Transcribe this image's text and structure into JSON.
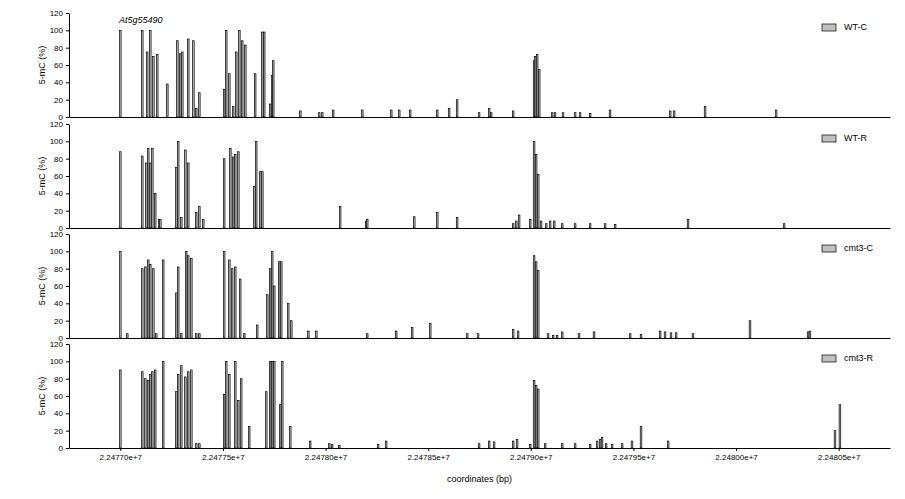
{
  "chart_data": [
    {
      "type": "bar",
      "annotation": "At5g55490",
      "ylabel": "5-mC (%)",
      "xlim": [
        22476750,
        22480750
      ],
      "ylim": [
        0,
        120
      ],
      "yticks": [
        0,
        20,
        40,
        60,
        80,
        100,
        120
      ],
      "legend": "upper right",
      "tick_labels": "y",
      "x": [
        22477000,
        22477107,
        22477131,
        22477146,
        22477161,
        22477180,
        22477229,
        22477278,
        22477292,
        22477302,
        22477331,
        22477356,
        22477370,
        22477385,
        22477506,
        22477516,
        22477531,
        22477550,
        22477565,
        22477580,
        22477594,
        22477609,
        22477657,
        22477692,
        22477701,
        22477730,
        22477740,
        22477745,
        22477877,
        22477969,
        22477984,
        22478037,
        22478179,
        22478320,
        22478359,
        22478412,
        22478544,
        22478602,
        22478641,
        22478748,
        22478797,
        22478807,
        22478914,
        22479016,
        22479021,
        22479031,
        22479041,
        22479104,
        22479118,
        22479157,
        22479216,
        22479240,
        22479289,
        22479386,
        22479679,
        22479698,
        22479849,
        22480195
      ],
      "series": [
        {
          "name": "WT-C",
          "color": "#c0c0c0",
          "values": [
            100,
            100,
            75,
            100,
            70,
            72,
            38,
            88,
            73,
            75,
            90,
            88,
            10,
            28,
            32,
            100,
            50,
            12,
            75,
            100,
            88,
            83,
            50,
            98,
            98,
            15,
            48,
            65,
            7,
            5,
            5,
            8,
            8,
            8,
            8,
            8,
            8,
            10,
            20,
            5,
            10,
            5,
            7,
            65,
            70,
            72,
            55,
            5,
            5,
            5,
            5,
            5,
            4,
            8,
            7,
            7,
            12,
            8
          ]
        }
      ]
    },
    {
      "type": "bar",
      "ylabel": "5-mC (%)",
      "xlim": [
        22476750,
        22480750
      ],
      "ylim": [
        0,
        120
      ],
      "yticks": [
        0,
        20,
        40,
        60,
        80,
        100,
        120
      ],
      "legend": "upper right",
      "tick_labels": "y",
      "x": [
        22477000,
        22477107,
        22477127,
        22477136,
        22477146,
        22477156,
        22477170,
        22477190,
        22477195,
        22477273,
        22477282,
        22477297,
        22477317,
        22477331,
        22477370,
        22477385,
        22477404,
        22477506,
        22477536,
        22477550,
        22477560,
        22477575,
        22477653,
        22477662,
        22477682,
        22477692,
        22478071,
        22478198,
        22478203,
        22478432,
        22478544,
        22478641,
        22478914,
        22478929,
        22478943,
        22478997,
        22479016,
        22479026,
        22479036,
        22479050,
        22479075,
        22479094,
        22479114,
        22479153,
        22479216,
        22479289,
        22479362,
        22479411,
        22479766,
        22480234
      ],
      "series": [
        {
          "name": "WT-R",
          "color": "#c0c0c0",
          "values": [
            88,
            83,
            75,
            92,
            75,
            92,
            40,
            10,
            10,
            70,
            100,
            12,
            90,
            75,
            18,
            25,
            10,
            80,
            92,
            82,
            85,
            88,
            48,
            100,
            65,
            65,
            25,
            8,
            10,
            13,
            18,
            12,
            5,
            8,
            15,
            10,
            100,
            85,
            62,
            8,
            5,
            8,
            8,
            5,
            5,
            5,
            5,
            4,
            10,
            5
          ]
        }
      ]
    },
    {
      "type": "bar",
      "ylabel": "5-mC (%)",
      "xlim": [
        22476750,
        22480750
      ],
      "ylim": [
        0,
        120
      ],
      "yticks": [
        0,
        20,
        40,
        60,
        80,
        100,
        120
      ],
      "legend": "upper right",
      "tick_labels": "y",
      "x": [
        22477000,
        22477034,
        22477107,
        22477122,
        22477136,
        22477146,
        22477161,
        22477175,
        22477209,
        22477273,
        22477282,
        22477297,
        22477321,
        22477331,
        22477346,
        22477370,
        22477385,
        22477506,
        22477531,
        22477545,
        22477560,
        22477584,
        22477604,
        22477667,
        22477716,
        22477730,
        22477740,
        22477750,
        22477774,
        22477784,
        22477818,
        22477833,
        22477916,
        22477955,
        22478203,
        22478344,
        22478422,
        22478510,
        22478690,
        22478743,
        22478914,
        22478938,
        22479016,
        22479026,
        22479036,
        22479084,
        22479109,
        22479128,
        22479153,
        22479235,
        22479308,
        22479484,
        22479537,
        22479630,
        22479654,
        22479683,
        22479708,
        22479790,
        22480068,
        22480351,
        22480360
      ],
      "series": [
        {
          "name": "cmt3-C",
          "color": "#c0c0c0",
          "values": [
            100,
            5,
            80,
            82,
            90,
            85,
            80,
            5,
            90,
            52,
            82,
            5,
            100,
            95,
            92,
            5,
            5,
            100,
            90,
            80,
            82,
            68,
            5,
            15,
            50,
            80,
            100,
            60,
            88,
            88,
            40,
            20,
            8,
            8,
            5,
            8,
            12,
            17,
            5,
            5,
            10,
            8,
            95,
            88,
            78,
            5,
            3,
            3,
            7,
            5,
            7,
            5,
            4,
            8,
            7,
            6,
            6,
            5,
            20,
            7,
            8
          ]
        }
      ]
    },
    {
      "type": "bar",
      "ylabel": "5-mC (%)",
      "xlabel": "coordinates (bp)",
      "xlim": [
        22476750,
        22480750
      ],
      "ylim": [
        0,
        120
      ],
      "yticks": [
        0,
        20,
        40,
        60,
        80,
        100,
        120
      ],
      "legend": "upper right",
      "xticks": [
        {
          "value": 22477000,
          "label": "2.24770e+7"
        },
        {
          "value": 22477500,
          "label": "2.24775e+7"
        },
        {
          "value": 22478000,
          "label": "2.24780e+7"
        },
        {
          "value": 22478500,
          "label": "2.24785e+7"
        },
        {
          "value": 22479000,
          "label": "2.24790e+7"
        },
        {
          "value": 22479500,
          "label": "2.24795e+7"
        },
        {
          "value": 22480000,
          "label": "2.24800e+7"
        },
        {
          "value": 22480500,
          "label": "2.24805e+7"
        }
      ],
      "x": [
        22477000,
        22477107,
        22477122,
        22477136,
        22477146,
        22477156,
        22477170,
        22477209,
        22477273,
        22477282,
        22477297,
        22477317,
        22477331,
        22477346,
        22477370,
        22477385,
        22477506,
        22477516,
        22477531,
        22477560,
        22477575,
        22477589,
        22477628,
        22477711,
        22477730,
        22477740,
        22477750,
        22477779,
        22477789,
        22477828,
        22477925,
        22478018,
        22478032,
        22478067,
        22478256,
        22478295,
        22478748,
        22478797,
        22478821,
        22478914,
        22478933,
        22478997,
        22479016,
        22479026,
        22479036,
        22479070,
        22479153,
        22479216,
        22479289,
        22479323,
        22479338,
        22479347,
        22479367,
        22479396,
        22479445,
        22479493,
        22479537,
        22479669,
        22480482,
        22480506
      ],
      "series": [
        {
          "name": "cmt3-R",
          "color": "#c0c0c0",
          "values": [
            90,
            88,
            80,
            78,
            85,
            88,
            90,
            100,
            65,
            85,
            95,
            82,
            88,
            90,
            5,
            5,
            62,
            100,
            85,
            100,
            55,
            80,
            25,
            65,
            100,
            100,
            100,
            50,
            100,
            25,
            8,
            5,
            4,
            3,
            4,
            8,
            5,
            8,
            7,
            8,
            10,
            4,
            78,
            72,
            68,
            5,
            5,
            5,
            4,
            8,
            10,
            12,
            5,
            4,
            5,
            8,
            25,
            8,
            20,
            50
          ]
        }
      ]
    }
  ]
}
